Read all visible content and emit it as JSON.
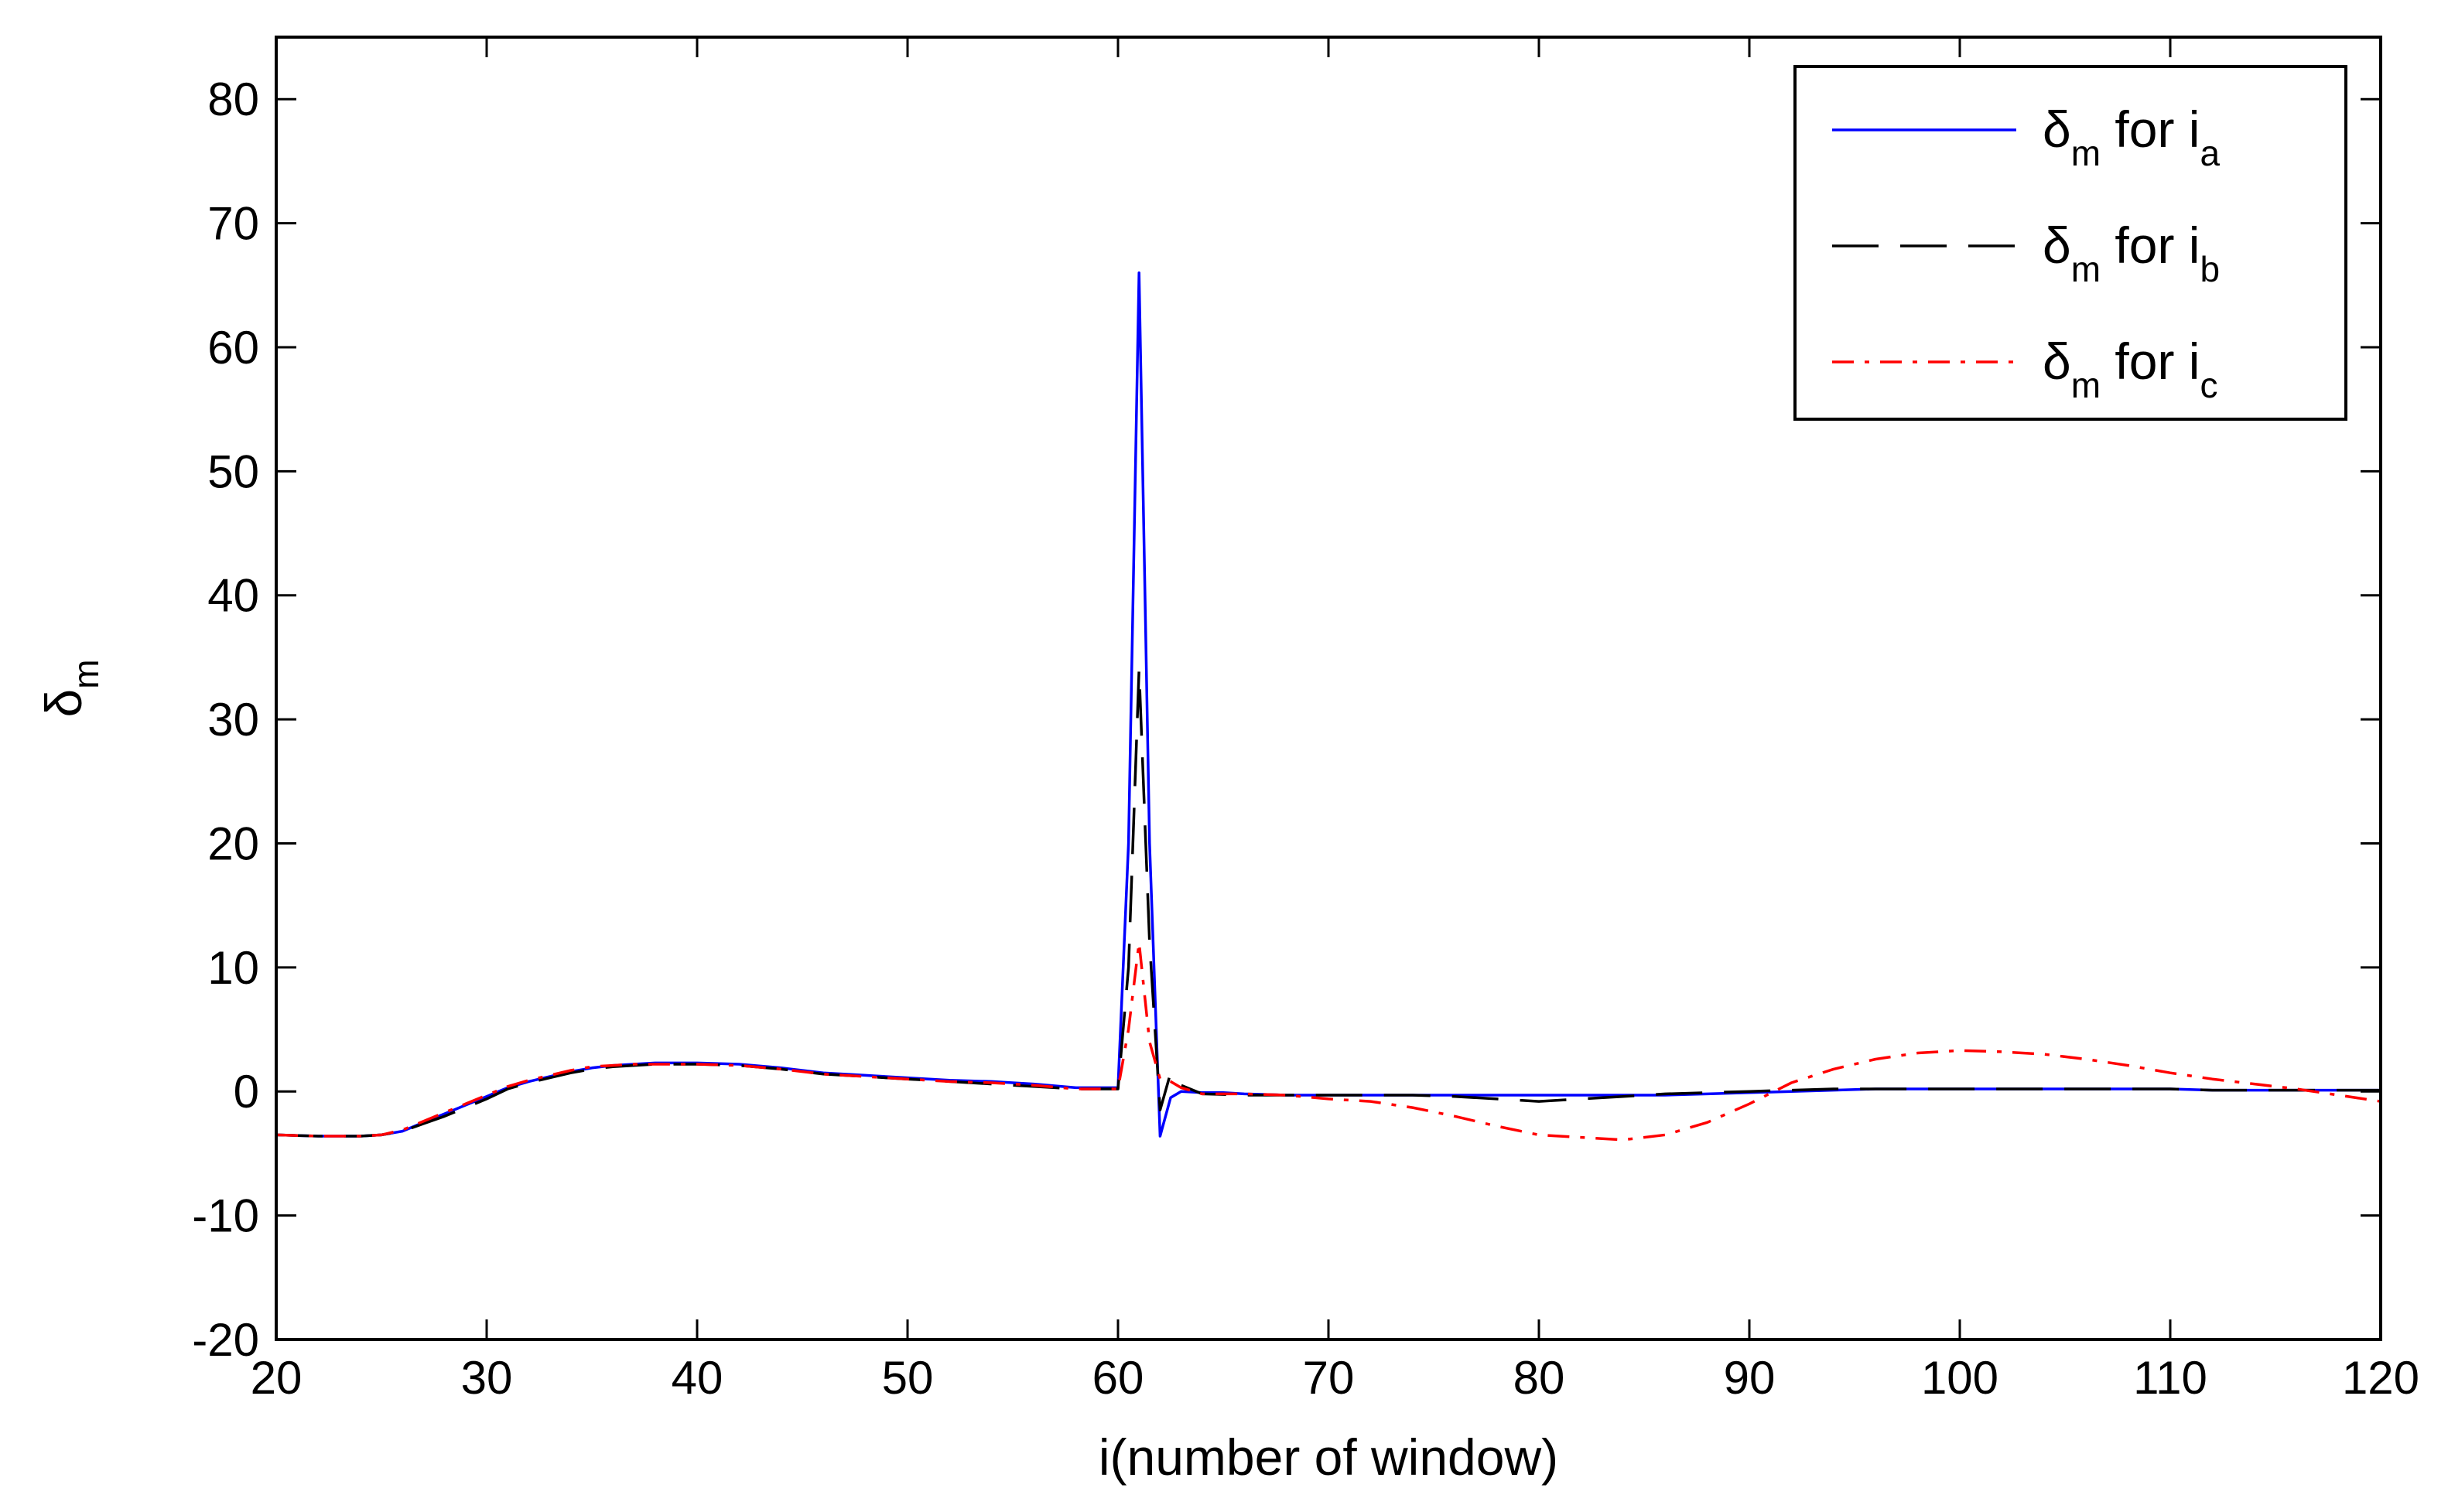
{
  "chart_data": {
    "type": "line",
    "xlabel": "i(number of window)",
    "ylabel": {
      "base": "δ",
      "sub": "m"
    },
    "xlim": [
      20,
      120
    ],
    "ylim": [
      -20,
      85
    ],
    "xticks": [
      20,
      30,
      40,
      50,
      60,
      70,
      80,
      90,
      100,
      110,
      120
    ],
    "yticks": [
      -20,
      -10,
      0,
      10,
      20,
      30,
      40,
      50,
      60,
      70,
      80
    ],
    "grid": false,
    "legend_position": "top-right",
    "series": [
      {
        "name": "δm for ia",
        "legend": {
          "base": "δ",
          "sub": "m",
          "mid": " for i",
          "sub2": "a"
        },
        "color": "#0000ff",
        "style": "solid",
        "x": [
          20,
          22,
          24,
          25,
          26,
          27,
          28,
          29,
          30,
          31,
          32,
          33,
          34,
          35,
          36,
          37,
          38,
          40,
          42,
          44,
          46,
          48,
          50,
          52,
          54,
          56,
          58,
          59,
          60,
          60.5,
          61,
          61.5,
          62,
          62.5,
          63,
          64,
          65,
          66,
          68,
          70,
          72,
          74,
          76,
          78,
          80,
          82,
          84,
          86,
          88,
          90,
          92,
          94,
          96,
          98,
          100,
          102,
          104,
          106,
          108,
          110,
          112,
          114,
          116,
          118,
          120
        ],
        "y": [
          -3.5,
          -3.6,
          -3.6,
          -3.5,
          -3.2,
          -2.5,
          -1.8,
          -1.1,
          -0.4,
          0.3,
          0.8,
          1.2,
          1.6,
          1.9,
          2.1,
          2.2,
          2.3,
          2.3,
          2.2,
          1.9,
          1.5,
          1.3,
          1.1,
          0.9,
          0.8,
          0.6,
          0.3,
          0.3,
          0.3,
          20,
          66,
          20,
          -3.6,
          -0.5,
          0,
          -0.1,
          -0.1,
          -0.2,
          -0.3,
          -0.3,
          -0.3,
          -0.3,
          -0.3,
          -0.3,
          -0.3,
          -0.3,
          -0.3,
          -0.3,
          -0.2,
          -0.1,
          0,
          0.1,
          0.2,
          0.2,
          0.2,
          0.2,
          0.2,
          0.2,
          0.2,
          0.2,
          0.1,
          0.1,
          0.1,
          0.1,
          0.1
        ]
      },
      {
        "name": "δm for ib",
        "legend": {
          "base": "δ",
          "sub": "m",
          "mid": " for i",
          "sub2": "b"
        },
        "color": "#000000",
        "style": "dashed",
        "x": [
          20,
          22,
          24,
          25,
          26,
          27,
          28,
          29,
          30,
          31,
          32,
          33,
          34,
          35,
          36,
          37,
          38,
          40,
          42,
          44,
          46,
          48,
          50,
          52,
          54,
          56,
          58,
          59,
          60,
          60.5,
          61,
          61.5,
          62,
          62.5,
          63,
          64,
          66,
          68,
          70,
          72,
          74,
          76,
          78,
          80,
          82,
          84,
          86,
          88,
          90,
          92,
          94,
          96,
          98,
          100,
          102,
          104,
          106,
          108,
          110,
          112,
          114,
          116,
          118,
          120
        ],
        "y": [
          -3.5,
          -3.6,
          -3.6,
          -3.5,
          -3.2,
          -2.6,
          -2.0,
          -1.3,
          -0.6,
          0.2,
          0.7,
          1.1,
          1.5,
          1.8,
          2.0,
          2.1,
          2.2,
          2.2,
          2.1,
          1.8,
          1.4,
          1.2,
          1.0,
          0.8,
          0.6,
          0.4,
          0.2,
          0.2,
          0.2,
          10,
          34,
          12,
          -1.5,
          1.5,
          0.5,
          -0.2,
          -0.3,
          -0.3,
          -0.3,
          -0.3,
          -0.3,
          -0.4,
          -0.6,
          -0.8,
          -0.6,
          -0.4,
          -0.2,
          -0.1,
          0,
          0.1,
          0.2,
          0.2,
          0.2,
          0.2,
          0.2,
          0.2,
          0.2,
          0.2,
          0.2,
          0.1,
          0.1,
          0.1,
          0.1,
          0.1
        ]
      },
      {
        "name": "δm for ic",
        "legend": {
          "base": "δ",
          "sub": "m",
          "mid": " for i",
          "sub2": "c"
        },
        "color": "#ff0000",
        "style": "dashdot",
        "x": [
          20,
          22,
          24,
          25,
          26,
          27,
          28,
          29,
          30,
          31,
          32,
          33,
          34,
          35,
          36,
          37,
          38,
          40,
          42,
          44,
          46,
          48,
          50,
          52,
          54,
          56,
          58,
          59,
          60,
          60.5,
          61,
          61.5,
          62,
          62.5,
          63,
          64,
          66,
          68,
          70,
          72,
          74,
          76,
          78,
          80,
          82,
          84,
          86,
          88,
          90,
          92,
          94,
          96,
          98,
          100,
          102,
          104,
          106,
          108,
          110,
          112,
          114,
          116,
          118,
          120
        ],
        "y": [
          -3.5,
          -3.6,
          -3.6,
          -3.5,
          -3.1,
          -2.4,
          -1.7,
          -1.0,
          -0.3,
          0.4,
          0.9,
          1.3,
          1.7,
          2.0,
          2.1,
          2.2,
          2.2,
          2.2,
          2.1,
          1.8,
          1.4,
          1.2,
          1.0,
          0.8,
          0.7,
          0.5,
          0.2,
          0.2,
          0.2,
          5,
          12,
          4,
          1,
          0.8,
          0.3,
          -0.2,
          -0.2,
          -0.3,
          -0.6,
          -0.8,
          -1.3,
          -2.0,
          -2.8,
          -3.5,
          -3.7,
          -3.9,
          -3.5,
          -2.5,
          -1.0,
          0.7,
          1.8,
          2.6,
          3.1,
          3.3,
          3.2,
          3.0,
          2.6,
          2.1,
          1.5,
          1.0,
          0.6,
          0.2,
          -0.3,
          -0.8
        ]
      }
    ]
  }
}
